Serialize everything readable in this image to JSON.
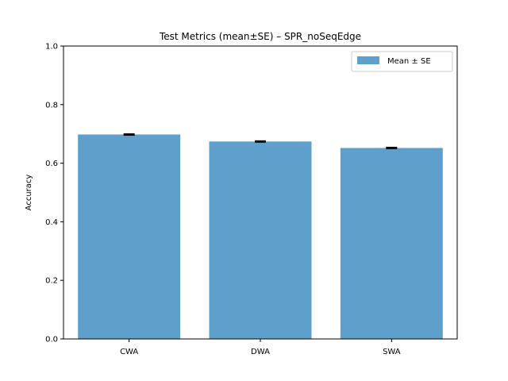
{
  "chart_data": {
    "type": "bar",
    "title": "Test Metrics (mean±SE) – SPR_noSeqEdge",
    "xlabel": "",
    "ylabel": "Accuracy",
    "categories": [
      "CWA",
      "DWA",
      "SWA"
    ],
    "series": [
      {
        "name": "Mean ± SE",
        "values": [
          0.698,
          0.674,
          0.652
        ],
        "errors": [
          0.002,
          0.002,
          0.002
        ],
        "color": "#5f9fcc"
      }
    ],
    "ylim": [
      0,
      1.0
    ],
    "yticks": [
      0.0,
      0.2,
      0.4,
      0.6,
      0.8,
      1.0
    ],
    "ytick_labels": [
      "0.0",
      "0.2",
      "0.4",
      "0.6",
      "0.8",
      "1.0"
    ],
    "grid": false,
    "legend_position": "top-right"
  }
}
